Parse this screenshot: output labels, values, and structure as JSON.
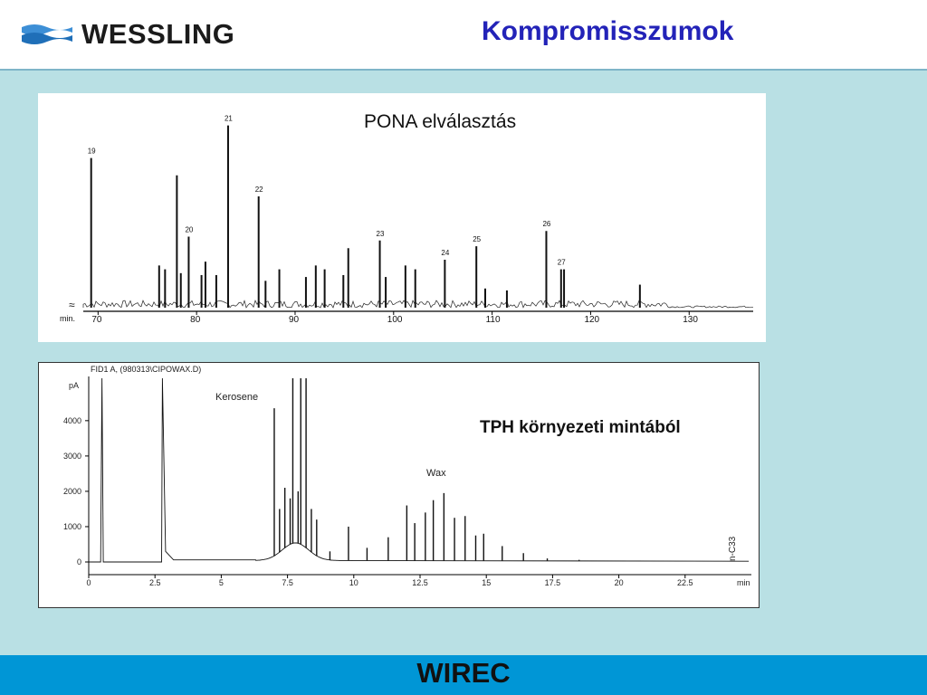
{
  "header": {
    "logo_text": "WESSLING",
    "title": "Kompromisszumok"
  },
  "footer": {
    "text": "WIREC"
  },
  "colors": {
    "header_title": "#2323b8",
    "background": "#b9e0e4",
    "footer": "#0096d6"
  },
  "chart_data": [
    {
      "type": "line",
      "title": "PONA elválasztás",
      "xlabel": "min.",
      "xlim": [
        68.5,
        136.5
      ],
      "xticks": [
        70,
        80,
        90,
        100,
        110,
        120,
        130
      ],
      "peaks": [
        {
          "x": 69.3,
          "h": 0.78,
          "label": "19"
        },
        {
          "x": 76.2,
          "h": 0.22
        },
        {
          "x": 76.8,
          "h": 0.2
        },
        {
          "x": 78.0,
          "h": 0.69
        },
        {
          "x": 78.4,
          "h": 0.18
        },
        {
          "x": 79.2,
          "h": 0.37,
          "label": "20"
        },
        {
          "x": 80.5,
          "h": 0.17
        },
        {
          "x": 80.9,
          "h": 0.24
        },
        {
          "x": 82.0,
          "h": 0.17
        },
        {
          "x": 83.2,
          "h": 0.95,
          "label": "21"
        },
        {
          "x": 86.3,
          "h": 0.58,
          "label": "22"
        },
        {
          "x": 87.0,
          "h": 0.14
        },
        {
          "x": 88.4,
          "h": 0.2
        },
        {
          "x": 91.1,
          "h": 0.16
        },
        {
          "x": 92.1,
          "h": 0.22
        },
        {
          "x": 93.0,
          "h": 0.2
        },
        {
          "x": 94.9,
          "h": 0.17
        },
        {
          "x": 95.4,
          "h": 0.31
        },
        {
          "x": 98.6,
          "h": 0.35,
          "label": "23"
        },
        {
          "x": 99.2,
          "h": 0.16
        },
        {
          "x": 101.2,
          "h": 0.22
        },
        {
          "x": 102.2,
          "h": 0.2
        },
        {
          "x": 105.2,
          "h": 0.25,
          "label": "24"
        },
        {
          "x": 108.4,
          "h": 0.32,
          "label": "25"
        },
        {
          "x": 109.3,
          "h": 0.1
        },
        {
          "x": 111.5,
          "h": 0.09
        },
        {
          "x": 115.5,
          "h": 0.4,
          "label": "26"
        },
        {
          "x": 117.0,
          "h": 0.2,
          "label": "27"
        },
        {
          "x": 117.3,
          "h": 0.2
        },
        {
          "x": 125.0,
          "h": 0.12
        }
      ]
    },
    {
      "type": "line",
      "title": "",
      "annotation": "TPH környezeti mintából",
      "header_text": "FID1 A,  (980313\\CIPOWAX.D)",
      "ylabel": "pA",
      "xlabel": "min",
      "xlim": [
        0,
        25
      ],
      "ylim": [
        -300,
        5200
      ],
      "xticks": [
        "0",
        "2.5",
        "5",
        "7.5",
        "10",
        "12.5",
        "15",
        "17.5",
        "20",
        "22.5"
      ],
      "yticks": [
        "0",
        "1000",
        "2000",
        "3000",
        "4000"
      ],
      "labels": [
        "Kerosene",
        "Wax",
        "n-C33"
      ],
      "peaks": [
        {
          "x": 7.0,
          "y": 4350
        },
        {
          "x": 7.2,
          "y": 1500
        },
        {
          "x": 7.4,
          "y": 2100
        },
        {
          "x": 7.6,
          "y": 1800
        },
        {
          "x": 7.7,
          "y": 5200
        },
        {
          "x": 7.9,
          "y": 2000
        },
        {
          "x": 8.0,
          "y": 5200
        },
        {
          "x": 8.2,
          "y": 5200
        },
        {
          "x": 8.4,
          "y": 1500
        },
        {
          "x": 8.6,
          "y": 1200
        },
        {
          "x": 9.1,
          "y": 300
        },
        {
          "x": 9.8,
          "y": 1000
        },
        {
          "x": 10.5,
          "y": 400
        },
        {
          "x": 11.3,
          "y": 700
        },
        {
          "x": 12.0,
          "y": 1600
        },
        {
          "x": 12.3,
          "y": 1100
        },
        {
          "x": 12.7,
          "y": 1400
        },
        {
          "x": 13.0,
          "y": 1750
        },
        {
          "x": 13.4,
          "y": 1950
        },
        {
          "x": 13.8,
          "y": 1250
        },
        {
          "x": 14.2,
          "y": 1300
        },
        {
          "x": 14.6,
          "y": 750
        },
        {
          "x": 14.9,
          "y": 800
        },
        {
          "x": 15.6,
          "y": 450
        },
        {
          "x": 16.4,
          "y": 250
        },
        {
          "x": 17.3,
          "y": 100
        },
        {
          "x": 18.5,
          "y": 60
        }
      ]
    }
  ]
}
